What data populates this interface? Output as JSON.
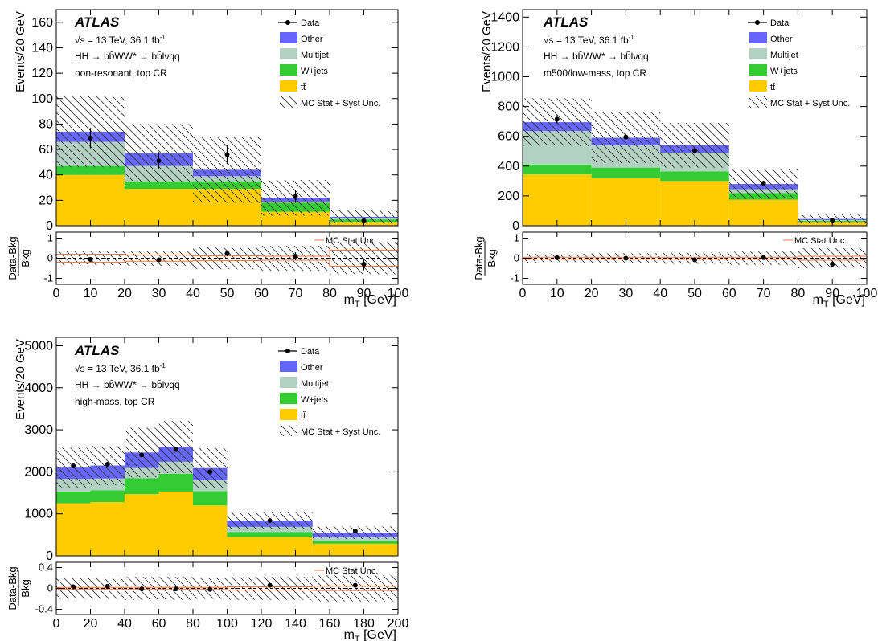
{
  "colors": {
    "ttbar": "#ffcc00",
    "wjets": "#33cc33",
    "multijet": "#b3d1c3",
    "other": "#6666ff",
    "unc_line": "#ff7744"
  },
  "legend": {
    "data": "Data",
    "other": "Other",
    "multijet": "Multijet",
    "wjets": "W+jets",
    "ttbar": "tt̄",
    "unc": "MC Stat + Syst Unc.",
    "ratio_unc": "MC Stat Unc."
  },
  "labels": {
    "atlas": "ATLAS",
    "energy": "√s = 13 TeV, 36.1 fb",
    "lumi_exp": "-1",
    "process": "HH →  bb̄WW* → bb̄lνqq",
    "y_main": "Events/20 GeV",
    "y_ratio_num": "Data-Bkg",
    "y_ratio_den": "Bkg",
    "x": "m",
    "x_sub": "T",
    "x_unit": " [GeV]"
  },
  "chart_data": [
    {
      "type": "bar",
      "region": "non-resonant, top CR",
      "xlim": [
        0,
        100
      ],
      "ylim": [
        0,
        170
      ],
      "yticks": [
        0,
        20,
        40,
        60,
        80,
        100,
        120,
        140,
        160
      ],
      "xticks": [
        0,
        10,
        20,
        30,
        40,
        50,
        60,
        70,
        80,
        90,
        100
      ],
      "bins": [
        [
          0,
          20
        ],
        [
          20,
          40
        ],
        [
          40,
          60
        ],
        [
          60,
          80
        ],
        [
          80,
          100
        ]
      ],
      "ttbar": [
        40,
        29,
        29,
        11,
        3
      ],
      "wjets": [
        7,
        6,
        6,
        7,
        2
      ],
      "multijet": [
        19,
        12,
        4,
        1,
        1
      ],
      "other": [
        8,
        10,
        5,
        3,
        1
      ],
      "unc": [
        28,
        23,
        26,
        14,
        5
      ],
      "data": {
        "x": [
          10,
          30,
          50,
          70,
          90
        ],
        "y": [
          69,
          51,
          56,
          23,
          4
        ],
        "err": [
          8,
          7,
          7.5,
          5,
          2
        ]
      },
      "ratio": {
        "ylim": [
          -1.3,
          1.3
        ],
        "yticks": [
          -1,
          0,
          1
        ],
        "values": [
          -0.06,
          -0.08,
          0.24,
          0.1,
          -0.3
        ],
        "err": [
          0.1,
          0.12,
          0.15,
          0.2,
          0.3
        ],
        "unc": [
          0.35,
          0.38,
          0.55,
          0.62,
          0.8
        ],
        "stat": [
          0.2,
          0.15,
          0.12,
          0.1,
          0.4
        ]
      }
    },
    {
      "type": "bar",
      "region": "m500/low-mass, top CR",
      "xlim": [
        0,
        100
      ],
      "ylim": [
        0,
        1450
      ],
      "yticks": [
        0,
        200,
        400,
        600,
        800,
        1000,
        1200,
        1400
      ],
      "xticks": [
        0,
        10,
        20,
        30,
        40,
        50,
        60,
        70,
        80,
        90,
        100
      ],
      "bins": [
        [
          0,
          20
        ],
        [
          20,
          40
        ],
        [
          40,
          60
        ],
        [
          60,
          80
        ],
        [
          80,
          100
        ]
      ],
      "ttbar": [
        345,
        320,
        300,
        175,
        25
      ],
      "wjets": [
        65,
        70,
        65,
        45,
        8
      ],
      "multijet": [
        225,
        150,
        125,
        25,
        5
      ],
      "other": [
        60,
        50,
        50,
        35,
        7
      ],
      "unc": [
        160,
        170,
        150,
        100,
        30
      ],
      "data": {
        "x": [
          10,
          30,
          50,
          70,
          90
        ],
        "y": [
          715,
          595,
          505,
          285,
          35
        ],
        "err": [
          27,
          24,
          22,
          17,
          6
        ]
      },
      "ratio": {
        "ylim": [
          -1.3,
          1.3
        ],
        "yticks": [
          -1,
          0,
          1
        ],
        "values": [
          0.03,
          0.0,
          -0.08,
          0.03,
          -0.3
        ],
        "err": [
          0.04,
          0.04,
          0.04,
          0.06,
          0.15
        ],
        "unc": [
          0.22,
          0.25,
          0.28,
          0.33,
          0.5
        ],
        "stat": [
          0.05,
          0.05,
          0.05,
          0.05,
          0.1
        ]
      }
    },
    {
      "type": "bar",
      "region": "high-mass, top CR",
      "xlim": [
        0,
        200
      ],
      "ylim": [
        0,
        5200
      ],
      "yticks": [
        0,
        1000,
        2000,
        3000,
        4000,
        5000
      ],
      "xticks": [
        0,
        20,
        40,
        60,
        80,
        100,
        120,
        140,
        160,
        180,
        200
      ],
      "bins": [
        [
          0,
          20
        ],
        [
          20,
          40
        ],
        [
          40,
          60
        ],
        [
          60,
          80
        ],
        [
          80,
          100
        ],
        [
          100,
          150
        ],
        [
          150,
          200
        ]
      ],
      "ttbar": [
        1250,
        1280,
        1470,
        1530,
        1200,
        450,
        290
      ],
      "wjets": [
        280,
        280,
        380,
        420,
        340,
        120,
        70
      ],
      "multijet": [
        300,
        280,
        240,
        290,
        260,
        120,
        80
      ],
      "other": [
        270,
        310,
        370,
        350,
        290,
        150,
        110
      ],
      "unc": [
        470,
        470,
        590,
        620,
        470,
        200,
        150
      ],
      "data": {
        "x": [
          10,
          30,
          50,
          70,
          90,
          125,
          175
        ],
        "y": [
          2140,
          2180,
          2400,
          2530,
          2000,
          840,
          590
        ],
        "err": [
          46,
          47,
          49,
          50,
          45,
          29,
          24
        ]
      },
      "ratio": {
        "ylim": [
          -0.5,
          0.5
        ],
        "yticks": [
          -0.4,
          0,
          0.4
        ],
        "values": [
          0.03,
          0.04,
          -0.01,
          -0.01,
          -0.02,
          0.06,
          0.06
        ],
        "err": [
          0.02,
          0.02,
          0.02,
          0.02,
          0.02,
          0.03,
          0.04
        ],
        "unc": [
          0.2,
          0.2,
          0.22,
          0.22,
          0.2,
          0.22,
          0.25
        ],
        "stat": [
          0.02,
          0.02,
          0.02,
          0.02,
          0.02,
          0.03,
          0.04
        ]
      }
    }
  ]
}
